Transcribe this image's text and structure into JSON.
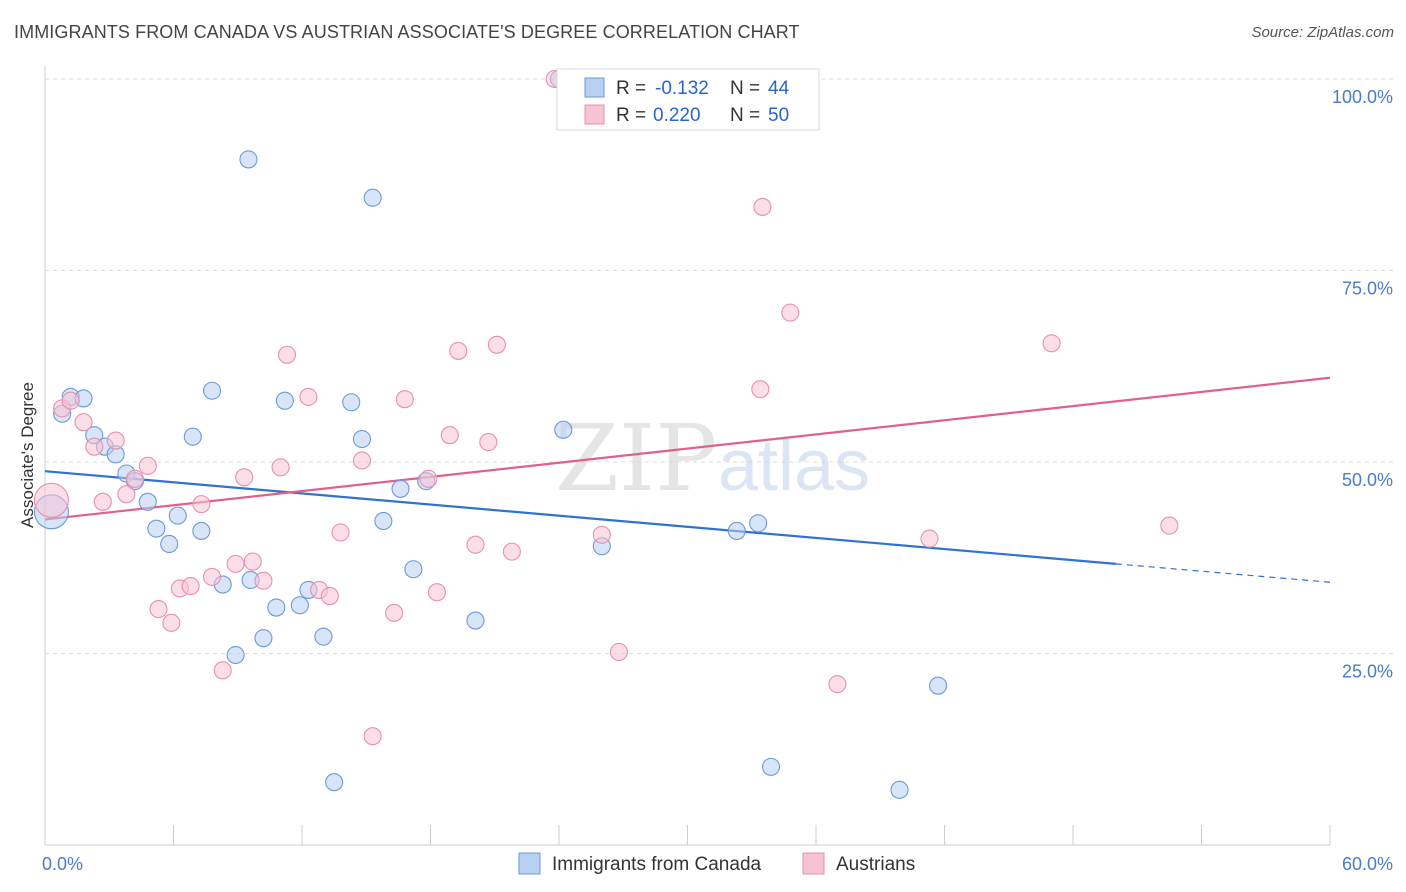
{
  "title": "IMMIGRANTS FROM CANADA VS AUSTRIAN ASSOCIATE'S DEGREE CORRELATION CHART",
  "source": "Source: ZipAtlas.com",
  "watermark": {
    "zip": "ZIP",
    "atlas": "atlas"
  },
  "colors": {
    "blue_fill": "#b8d0f2",
    "blue_stroke": "#6c9ad8",
    "blue_line": "#2f72d0",
    "pink_fill": "#f7c3d3",
    "pink_stroke": "#e890ac",
    "pink_line": "#e0608a",
    "grid": "#dcdcdc",
    "tick_text": "#4a7bc8"
  },
  "legend": {
    "rows": [
      {
        "r_label": "R = ",
        "r_value": "-0.132",
        "n_label": "N = ",
        "n_value": "44"
      },
      {
        "r_label": "R = ",
        "r_value": "0.220",
        "n_label": "N = ",
        "n_value": "50"
      }
    ]
  },
  "bottom_legend": [
    "Immigrants from Canada",
    "Austrians"
  ],
  "chart_data": {
    "type": "scatter",
    "xlabel": "",
    "ylabel": "Associate's Degree",
    "xlim": [
      0,
      60
    ],
    "ylim": [
      0,
      100
    ],
    "x_tick_labels": [
      "0.0%",
      "60.0%"
    ],
    "y_ticks": [
      25,
      50,
      75,
      100
    ],
    "y_tick_labels": [
      "25.0%",
      "50.0%",
      "75.0%",
      "100.0%"
    ],
    "grid": true,
    "legend_position": "top-center",
    "series": [
      {
        "name": "Immigrants from Canada",
        "color": "blue",
        "trend": {
          "x0": 0,
          "y0": 48.8,
          "x1": 50,
          "y1": 36.7,
          "dash_to_x": 60,
          "dash_to_y": 34.3
        },
        "points": [
          {
            "x": 0.3,
            "y": 43.5,
            "big": true
          },
          {
            "x": 0.8,
            "y": 56.3
          },
          {
            "x": 1.2,
            "y": 58.5
          },
          {
            "x": 1.8,
            "y": 58.3
          },
          {
            "x": 2.3,
            "y": 53.5
          },
          {
            "x": 2.8,
            "y": 52.0
          },
          {
            "x": 3.3,
            "y": 51.0
          },
          {
            "x": 3.8,
            "y": 48.5
          },
          {
            "x": 4.2,
            "y": 47.5
          },
          {
            "x": 4.8,
            "y": 44.8
          },
          {
            "x": 5.2,
            "y": 41.3
          },
          {
            "x": 5.8,
            "y": 39.3
          },
          {
            "x": 6.2,
            "y": 43.0
          },
          {
            "x": 6.9,
            "y": 53.3
          },
          {
            "x": 7.3,
            "y": 41.0
          },
          {
            "x": 7.8,
            "y": 59.3
          },
          {
            "x": 8.3,
            "y": 34.0
          },
          {
            "x": 8.9,
            "y": 24.8
          },
          {
            "x": 9.5,
            "y": 89.5
          },
          {
            "x": 9.6,
            "y": 34.6
          },
          {
            "x": 10.2,
            "y": 27.0
          },
          {
            "x": 10.8,
            "y": 31.0
          },
          {
            "x": 11.2,
            "y": 58.0
          },
          {
            "x": 11.9,
            "y": 31.3
          },
          {
            "x": 12.3,
            "y": 33.3
          },
          {
            "x": 13.0,
            "y": 27.2
          },
          {
            "x": 13.5,
            "y": 8.2
          },
          {
            "x": 14.3,
            "y": 57.8
          },
          {
            "x": 14.8,
            "y": 53.0
          },
          {
            "x": 15.3,
            "y": 84.5
          },
          {
            "x": 15.8,
            "y": 42.3
          },
          {
            "x": 16.6,
            "y": 46.5
          },
          {
            "x": 17.2,
            "y": 36.0
          },
          {
            "x": 17.8,
            "y": 47.5
          },
          {
            "x": 20.1,
            "y": 29.3
          },
          {
            "x": 24.0,
            "y": 100.0
          },
          {
            "x": 24.2,
            "y": 54.2
          },
          {
            "x": 26.0,
            "y": 39.0
          },
          {
            "x": 28.7,
            "y": 100.0
          },
          {
            "x": 32.3,
            "y": 41.0
          },
          {
            "x": 33.3,
            "y": 42.0
          },
          {
            "x": 33.5,
            "y": 100.0
          },
          {
            "x": 33.9,
            "y": 10.2
          },
          {
            "x": 39.9,
            "y": 7.2
          },
          {
            "x": 41.7,
            "y": 20.8
          }
        ]
      },
      {
        "name": "Austrians",
        "color": "pink",
        "trend": {
          "x0": 0,
          "y0": 42.5,
          "x1": 60,
          "y1": 61.0
        },
        "points": [
          {
            "x": 0.3,
            "y": 45.0,
            "big": true
          },
          {
            "x": 0.8,
            "y": 57.0
          },
          {
            "x": 1.2,
            "y": 58.0
          },
          {
            "x": 1.8,
            "y": 55.2
          },
          {
            "x": 2.3,
            "y": 52.0
          },
          {
            "x": 2.7,
            "y": 44.8
          },
          {
            "x": 3.3,
            "y": 52.8
          },
          {
            "x": 3.8,
            "y": 45.8
          },
          {
            "x": 4.2,
            "y": 47.8
          },
          {
            "x": 4.8,
            "y": 49.5
          },
          {
            "x": 5.3,
            "y": 30.8
          },
          {
            "x": 5.9,
            "y": 29.0
          },
          {
            "x": 6.3,
            "y": 33.5
          },
          {
            "x": 6.8,
            "y": 33.8
          },
          {
            "x": 7.3,
            "y": 44.5
          },
          {
            "x": 7.8,
            "y": 35.0
          },
          {
            "x": 8.3,
            "y": 22.8
          },
          {
            "x": 8.9,
            "y": 36.7
          },
          {
            "x": 9.3,
            "y": 48.0
          },
          {
            "x": 9.7,
            "y": 37.0
          },
          {
            "x": 10.2,
            "y": 34.5
          },
          {
            "x": 11.0,
            "y": 49.3
          },
          {
            "x": 11.3,
            "y": 64.0
          },
          {
            "x": 12.3,
            "y": 58.5
          },
          {
            "x": 12.8,
            "y": 33.3
          },
          {
            "x": 13.3,
            "y": 32.5
          },
          {
            "x": 13.8,
            "y": 40.8
          },
          {
            "x": 14.8,
            "y": 50.2
          },
          {
            "x": 15.3,
            "y": 14.2
          },
          {
            "x": 16.3,
            "y": 30.3
          },
          {
            "x": 16.8,
            "y": 58.2
          },
          {
            "x": 17.9,
            "y": 47.8
          },
          {
            "x": 18.3,
            "y": 33.0
          },
          {
            "x": 18.9,
            "y": 53.5
          },
          {
            "x": 19.3,
            "y": 64.5
          },
          {
            "x": 20.1,
            "y": 39.2
          },
          {
            "x": 21.1,
            "y": 65.3
          },
          {
            "x": 21.8,
            "y": 38.3
          },
          {
            "x": 23.8,
            "y": 100.0
          },
          {
            "x": 26.0,
            "y": 40.5
          },
          {
            "x": 26.8,
            "y": 25.2
          },
          {
            "x": 28.5,
            "y": 100.0
          },
          {
            "x": 33.4,
            "y": 59.5
          },
          {
            "x": 33.5,
            "y": 83.3
          },
          {
            "x": 34.8,
            "y": 69.5
          },
          {
            "x": 37.0,
            "y": 21.0
          },
          {
            "x": 41.3,
            "y": 40.0
          },
          {
            "x": 47.0,
            "y": 65.5
          },
          {
            "x": 52.5,
            "y": 41.7
          },
          {
            "x": 20.7,
            "y": 52.6
          }
        ]
      }
    ]
  }
}
